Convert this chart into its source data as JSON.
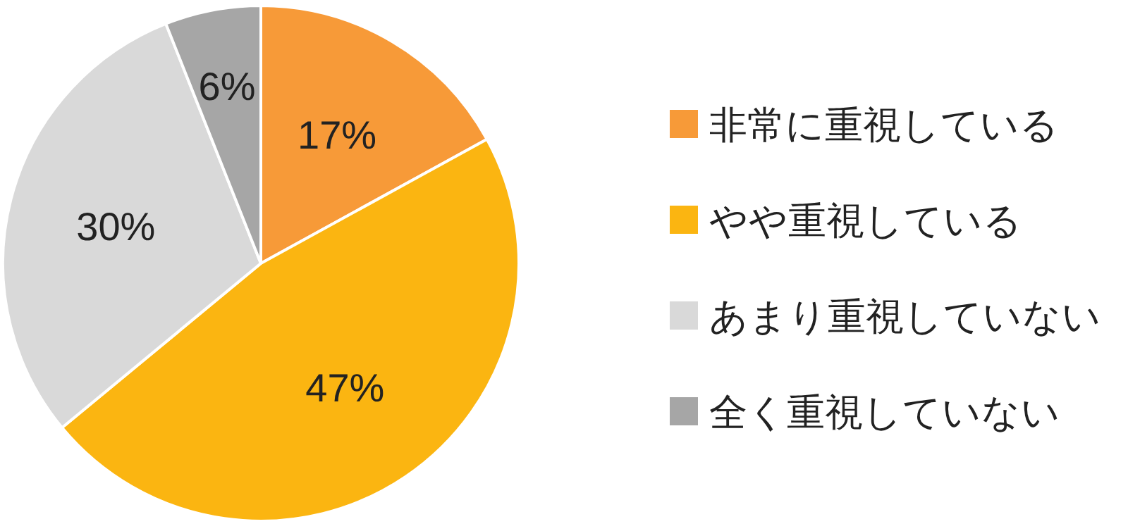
{
  "chart_data": {
    "type": "pie",
    "categories": [
      "非常に重視している",
      "やや重視している",
      "あまり重視していない",
      "全く重視していない"
    ],
    "values": [
      17,
      47,
      30,
      6
    ],
    "value_labels": [
      "17%",
      "47%",
      "30%",
      "6%"
    ],
    "colors": [
      "#f79a38",
      "#fbb511",
      "#d9d9d9",
      "#a6a6a6"
    ],
    "legend": "right"
  }
}
